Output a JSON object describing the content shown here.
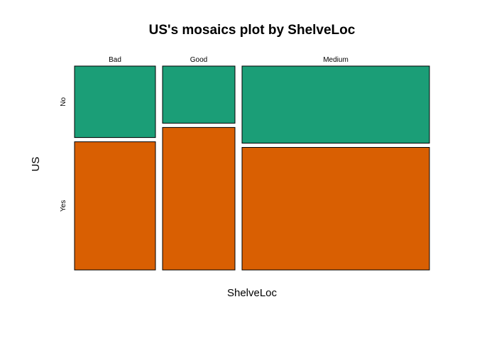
{
  "chart_data": {
    "type": "mosaic",
    "title": "US's mosaics plot by ShelveLoc",
    "xlabel": "ShelveLoc",
    "ylabel": "US",
    "x_categories": [
      "Bad",
      "Good",
      "Medium"
    ],
    "x_proportions": [
      0.2375,
      0.2125,
      0.55
    ],
    "y_categories": [
      "No",
      "Yes"
    ],
    "conditional_proportions": {
      "Bad": {
        "No": 0.358,
        "Yes": 0.642
      },
      "Good": {
        "No": 0.286,
        "Yes": 0.714
      },
      "Medium": {
        "No": 0.386,
        "Yes": 0.614
      }
    },
    "colors": {
      "No": "#1b9e77",
      "Yes": "#d95f02"
    },
    "grid": false,
    "legend": "none"
  }
}
